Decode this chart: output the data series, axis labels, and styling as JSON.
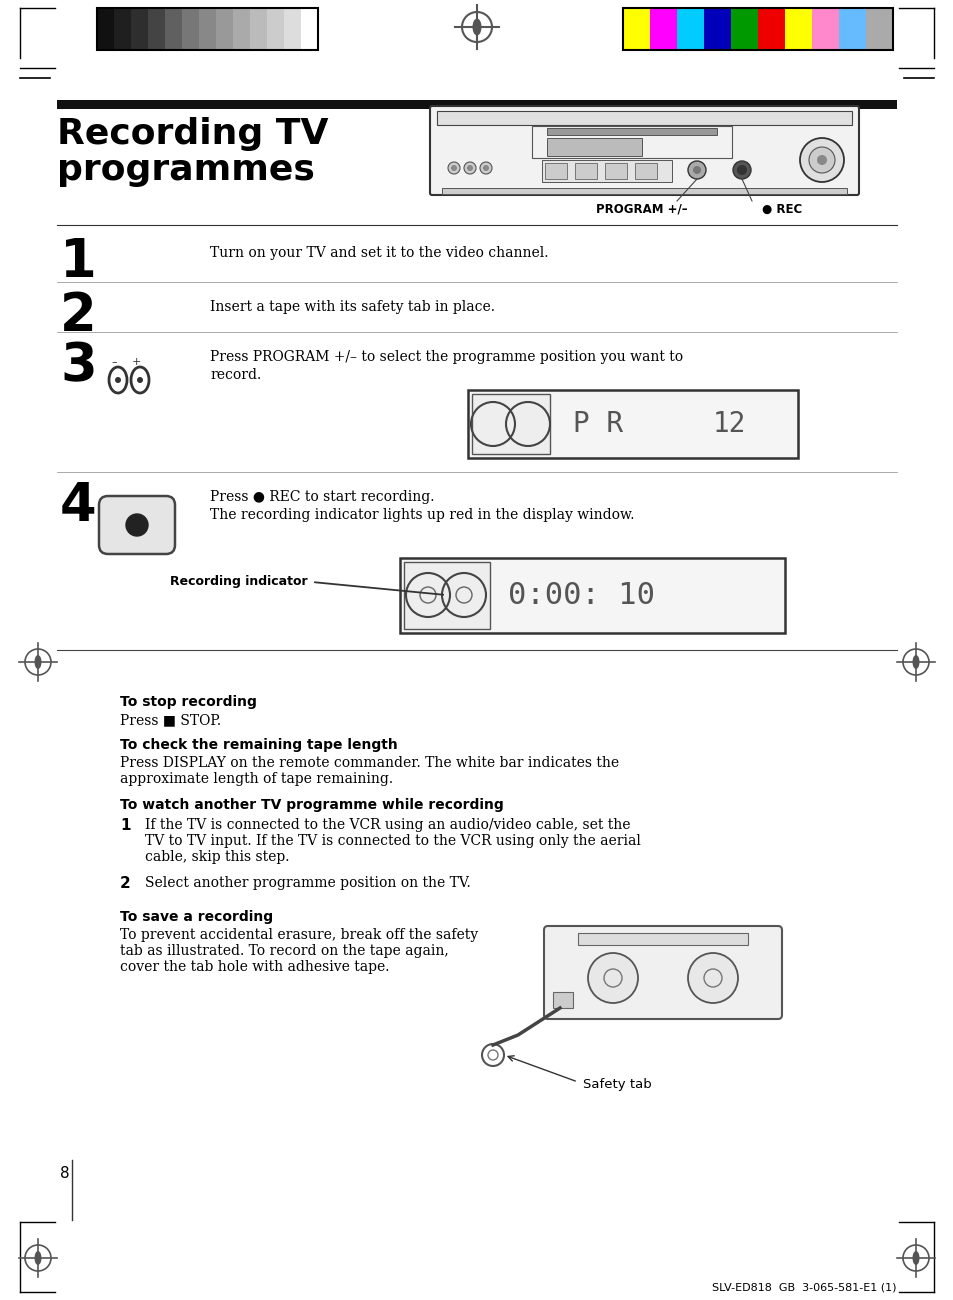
{
  "bg_color": "#ffffff",
  "text_color": "#000000",
  "title_line1": "Recording TV",
  "title_line2": "programmes",
  "step1_num": "1",
  "step1_text": "Turn on your TV and set it to the video channel.",
  "step2_num": "2",
  "step2_text": "Insert a tape with its safety tab in place.",
  "step3_num": "3",
  "step4_num": "4",
  "step4_text_line1": "Press ● REC to start recording.",
  "step4_text_line2": "The recording indicator lights up red in the display window.",
  "rec_indicator_label": "Recording indicator",
  "program_label": "PROGRAM +/–",
  "rec_label": "● REC",
  "to_stop_title": "To stop recording",
  "to_stop_text": "Press ■ STOP.",
  "check_tape_title": "To check the remaining tape length",
  "check_tape_text": "Press DISPLAY on the remote commander. The white bar indicates the\napproximate length of tape remaining.",
  "watch_tv_title": "To watch another TV programme while recording",
  "watch_tv_1": "If the TV is connected to the VCR using an audio/video cable, set the\nTV to TV input. If the TV is connected to the VCR using only the aerial\ncable, skip this step.",
  "watch_tv_2": "Select another programme position on the TV.",
  "save_title": "To save a recording",
  "save_text": "To prevent accidental erasure, break off the safety\ntab as illustrated. To record on the tape again,\ncover the tab hole with adhesive tape.",
  "safety_tab_label": "Safety tab",
  "page_num": "8",
  "footer": "SLV-ED818  GB  3-065-581-E1 (1)",
  "grayscale_colors": [
    "#111111",
    "#1f1f1f",
    "#2e2e2e",
    "#444444",
    "#606060",
    "#777777",
    "#888888",
    "#999999",
    "#aaaaaa",
    "#bbbbbb",
    "#cccccc",
    "#dddddd",
    "#ffffff"
  ],
  "color_bars": [
    "#ffff00",
    "#ff00ff",
    "#00ccff",
    "#0000bb",
    "#009900",
    "#ee0000",
    "#ffff00",
    "#ff88cc",
    "#66bbff",
    "#aaaaaa"
  ]
}
